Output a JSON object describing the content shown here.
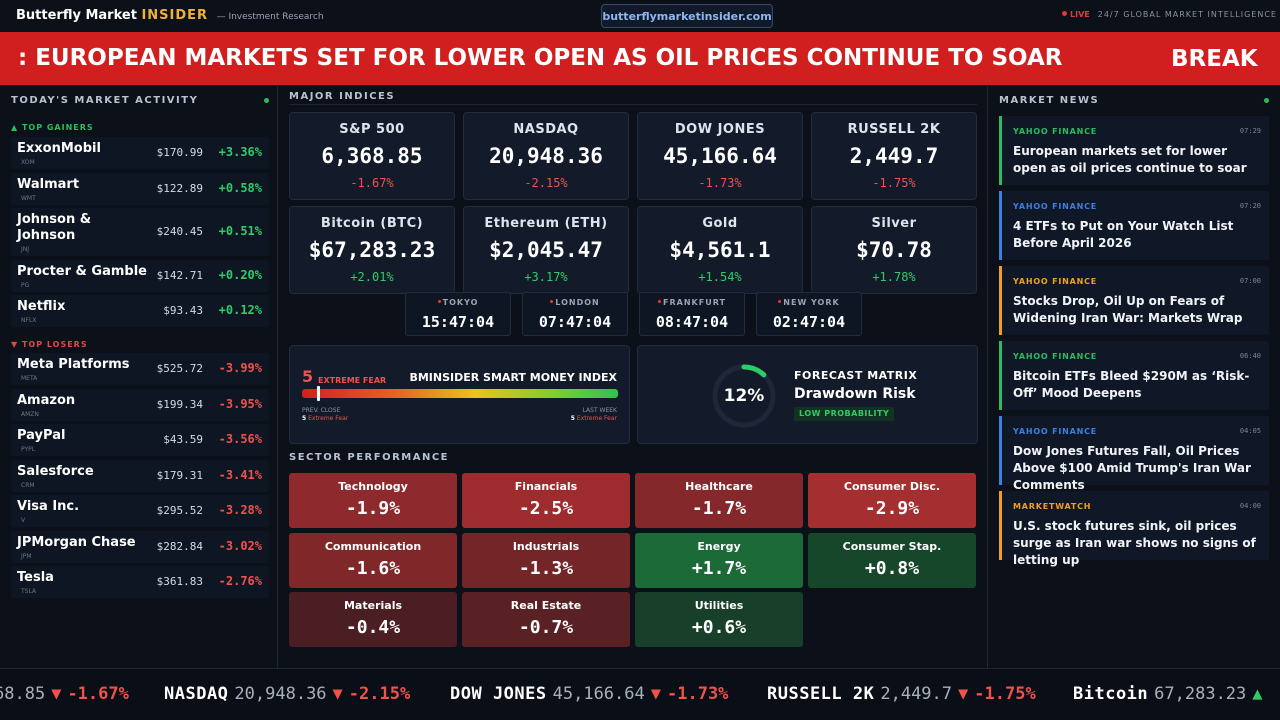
{
  "header": {
    "brand_main": "Butterfly Market",
    "brand_insider": "INSIDER",
    "brand_sub": "— Investment Research",
    "url": "butterflymarketinsider.com",
    "live_label": "LIVE",
    "tagline": "24/7 GLOBAL MARKET INTELLIGENCE"
  },
  "banner": {
    "headline": ": EUROPEAN MARKETS SET FOR LOWER OPEN AS OIL PRICES CONTINUE TO SOAR",
    "label": "BREAK"
  },
  "market_activity": {
    "title": "TODAY'S MARKET ACTIVITY",
    "gainers_label": "▲ TOP GAINERS",
    "losers_label": "▼ TOP LOSERS",
    "gainers": [
      {
        "name": "ExxonMobil",
        "ticker": "XOM",
        "price": "$170.99",
        "change": "+3.36%"
      },
      {
        "name": "Walmart",
        "ticker": "WMT",
        "price": "$122.89",
        "change": "+0.58%"
      },
      {
        "name": "Johnson & Johnson",
        "ticker": "JNJ",
        "price": "$240.45",
        "change": "+0.51%"
      },
      {
        "name": "Procter & Gamble",
        "ticker": "PG",
        "price": "$142.71",
        "change": "+0.20%"
      },
      {
        "name": "Netflix",
        "ticker": "NFLX",
        "price": "$93.43",
        "change": "+0.12%"
      }
    ],
    "losers": [
      {
        "name": "Meta Platforms",
        "ticker": "META",
        "price": "$525.72",
        "change": "-3.99%"
      },
      {
        "name": "Amazon",
        "ticker": "AMZN",
        "price": "$199.34",
        "change": "-3.95%"
      },
      {
        "name": "PayPal",
        "ticker": "PYPL",
        "price": "$43.59",
        "change": "-3.56%"
      },
      {
        "name": "Salesforce",
        "ticker": "CRM",
        "price": "$179.31",
        "change": "-3.41%"
      },
      {
        "name": "Visa Inc.",
        "ticker": "V",
        "price": "$295.52",
        "change": "-3.28%"
      },
      {
        "name": "JPMorgan Chase",
        "ticker": "JPM",
        "price": "$282.84",
        "change": "-3.02%"
      },
      {
        "name": "Tesla",
        "ticker": "TSLA",
        "price": "$361.83",
        "change": "-2.76%"
      }
    ]
  },
  "indices": {
    "title": "MAJOR INDICES",
    "items": [
      {
        "name": "S&P 500",
        "value": "6,368.85",
        "change": "-1.67%",
        "dir": "down"
      },
      {
        "name": "NASDAQ",
        "value": "20,948.36",
        "change": "-2.15%",
        "dir": "down"
      },
      {
        "name": "DOW JONES",
        "value": "45,166.64",
        "change": "-1.73%",
        "dir": "down"
      },
      {
        "name": "RUSSELL 2K",
        "value": "2,449.7",
        "change": "-1.75%",
        "dir": "down"
      },
      {
        "name": "Bitcoin (BTC)",
        "value": "$67,283.23",
        "change": "+2.01%",
        "dir": "up"
      },
      {
        "name": "Ethereum (ETH)",
        "value": "$2,045.47",
        "change": "+3.17%",
        "dir": "up"
      },
      {
        "name": "Gold",
        "value": "$4,561.1",
        "change": "+1.54%",
        "dir": "up"
      },
      {
        "name": "Silver",
        "value": "$70.78",
        "change": "+1.78%",
        "dir": "up"
      }
    ]
  },
  "clocks": [
    {
      "city": "TOKYO",
      "time": "15:47:04"
    },
    {
      "city": "LONDON",
      "time": "07:47:04"
    },
    {
      "city": "FRANKFURT",
      "time": "08:47:04"
    },
    {
      "city": "NEW YORK",
      "time": "02:47:04"
    }
  ],
  "fear_greed": {
    "value": "5",
    "value_fraction": 0.05,
    "label": "EXTREME FEAR",
    "title": "BMINSIDER SMART MONEY INDEX",
    "prev_close_label": "PREV. CLOSE",
    "prev_close_value": "5",
    "prev_close_text": "Extreme Fear",
    "last_week_label": "LAST WEEK",
    "last_week_value": "5",
    "last_week_text": "Extreme Fear"
  },
  "forecast": {
    "percent": "12%",
    "percent_value": 0.12,
    "title": "FORECAST MATRIX",
    "subtitle": "Drawdown Risk",
    "badge": "LOW PROBABILITY",
    "ring_color": "#2fcc66"
  },
  "sectors": {
    "title": "SECTOR PERFORMANCE",
    "items": [
      {
        "name": "Technology",
        "value": "-1.9%",
        "color": "#8e2a2d"
      },
      {
        "name": "Financials",
        "value": "-2.5%",
        "color": "#9e2c2e"
      },
      {
        "name": "Healthcare",
        "value": "-1.7%",
        "color": "#85282b"
      },
      {
        "name": "Consumer Disc.",
        "value": "-2.9%",
        "color": "#a52e30"
      },
      {
        "name": "Communication",
        "value": "-1.6%",
        "color": "#80272a"
      },
      {
        "name": "Industrials",
        "value": "-1.3%",
        "color": "#742528"
      },
      {
        "name": "Energy",
        "value": "+1.7%",
        "color": "#1b6a38"
      },
      {
        "name": "Consumer Stap.",
        "value": "+0.8%",
        "color": "#17472a"
      },
      {
        "name": "Materials",
        "value": "-0.4%",
        "color": "#4a1e22"
      },
      {
        "name": "Real Estate",
        "value": "-0.7%",
        "color": "#5a2125"
      },
      {
        "name": "Utilities",
        "value": "+0.6%",
        "color": "#173f29"
      }
    ]
  },
  "news": {
    "title": "MARKET NEWS",
    "items": [
      {
        "source": "YAHOO FINANCE",
        "time": "07:29",
        "headline": "European markets set for lower open as oil prices continue to soar",
        "color": "#2dbb5d"
      },
      {
        "source": "YAHOO FINANCE",
        "time": "07:20",
        "headline": "4 ETFs to Put on Your Watch List Before April 2026",
        "color": "#3f7fe0"
      },
      {
        "source": "YAHOO FINANCE",
        "time": "07:00",
        "headline": "Stocks Drop, Oil Up on Fears of Widening Iran War: Markets Wrap",
        "color": "#f0a020"
      },
      {
        "source": "YAHOO FINANCE",
        "time": "06:40",
        "headline": "Bitcoin ETFs Bleed $290M as ‘Risk-Off’ Mood Deepens",
        "color": "#2dbb5d"
      },
      {
        "source": "YAHOO FINANCE",
        "time": "04:05",
        "headline": "Dow Jones Futures Fall, Oil Prices Above $100 Amid Trump's Iran War Comments",
        "color": "#3f7fe0"
      },
      {
        "source": "MARKETWATCH",
        "time": "04:00",
        "headline": "U.S. stock futures sink, oil prices surge as Iran war shows no signs of letting up",
        "color": "#f0a020"
      }
    ]
  },
  "ticker": [
    {
      "symbol": "",
      "value": "68.85",
      "arrow": "▼",
      "change": "-1.67%",
      "dir": "down"
    },
    {
      "symbol": "NASDAQ",
      "value": "20,948.36",
      "arrow": "▼",
      "change": "-2.15%",
      "dir": "down"
    },
    {
      "symbol": "DOW JONES",
      "value": "45,166.64",
      "arrow": "▼",
      "change": "-1.73%",
      "dir": "down"
    },
    {
      "symbol": "RUSSELL 2K",
      "value": "2,449.7",
      "arrow": "▼",
      "change": "-1.75%",
      "dir": "down"
    },
    {
      "symbol": "Bitcoin",
      "value": "67,283.23",
      "arrow": "▲",
      "change": "",
      "dir": "up"
    }
  ]
}
